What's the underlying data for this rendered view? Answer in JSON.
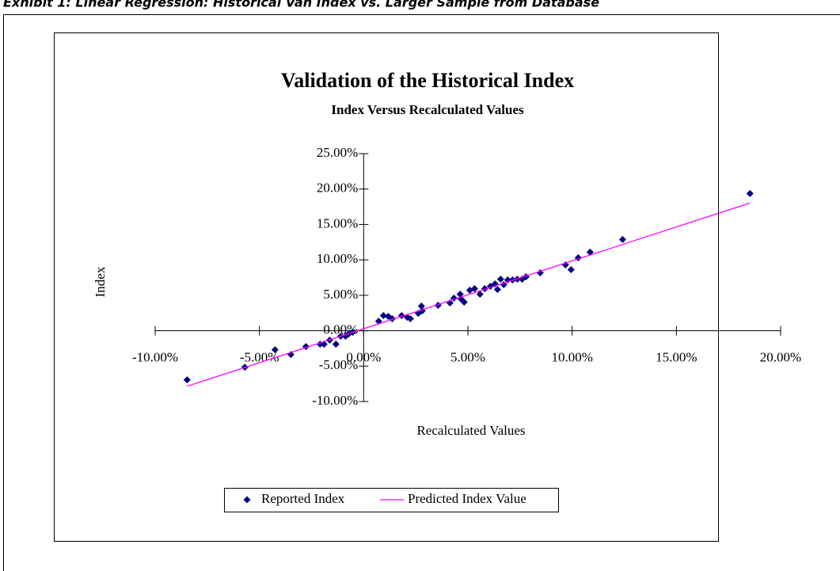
{
  "exhibit_title": "Exhibit 1: Linear Regression: Historical Van Index vs. Larger Sample from Database",
  "chart_data": {
    "type": "scatter",
    "title": "Validation of the Historical Index",
    "subtitle": "Index Versus Recalculated Values",
    "x_label": "Recalculated Values",
    "y_label": "Index",
    "xlim": [
      -10,
      20
    ],
    "xticks": [
      {
        "value": -10,
        "label": "-10.00%"
      },
      {
        "value": -5,
        "label": "-5.00%"
      },
      {
        "value": 0,
        "label": "0.00%"
      },
      {
        "value": 5,
        "label": "5.00%"
      },
      {
        "value": 10,
        "label": "10.00%"
      },
      {
        "value": 15,
        "label": "15.00%"
      },
      {
        "value": 20,
        "label": "20.00%"
      }
    ],
    "ylim": [
      -10,
      25
    ],
    "yticks": [
      {
        "value": -10,
        "label": "-10.00%"
      },
      {
        "value": -5,
        "label": "-5.00%"
      },
      {
        "value": 0,
        "label": "0.00%"
      },
      {
        "value": 5,
        "label": "5.00%"
      },
      {
        "value": 10,
        "label": "10.00%"
      },
      {
        "value": 15,
        "label": "15.00%"
      },
      {
        "value": 20,
        "label": "20.00%"
      },
      {
        "value": 25,
        "label": "25.00%"
      }
    ],
    "series": [
      {
        "name": "Reported Index",
        "color": "#000080",
        "kind": "points",
        "x": [
          -8.47,
          -5.7,
          -4.25,
          -3.49,
          -2.77,
          -2.09,
          -1.9,
          -1.63,
          -1.33,
          -1.1,
          -0.87,
          -0.72,
          -0.53,
          0.72,
          0.95,
          1.18,
          1.37,
          1.82,
          2.09,
          2.24,
          2.62,
          2.77,
          2.81,
          3.57,
          4.14,
          4.33,
          4.63,
          4.67,
          4.82,
          5.09,
          5.32,
          5.58,
          5.81,
          6.08,
          6.3,
          6.42,
          6.57,
          6.72,
          6.91,
          7.14,
          7.37,
          7.6,
          7.79,
          8.47,
          9.68,
          9.95,
          10.29,
          10.86,
          12.42,
          18.53
        ],
        "values": [
          -6.94,
          -5.15,
          -2.69,
          -3.36,
          -2.24,
          -1.9,
          -1.9,
          -1.34,
          -1.9,
          -0.78,
          -0.78,
          -0.45,
          -0.22,
          1.34,
          2.13,
          2.02,
          1.68,
          2.13,
          1.9,
          1.68,
          2.46,
          3.47,
          2.8,
          3.58,
          3.92,
          4.59,
          5.15,
          4.48,
          4.03,
          5.71,
          5.94,
          5.15,
          5.94,
          6.27,
          6.61,
          5.82,
          7.28,
          6.5,
          7.17,
          7.17,
          7.28,
          7.28,
          7.61,
          8.17,
          9.29,
          8.62,
          10.3,
          11.09,
          12.88,
          19.37
        ]
      },
      {
        "name": "Predicted Index Value",
        "color": "#ff00ff",
        "kind": "line",
        "x": [
          -8.47,
          18.53
        ],
        "values": [
          -7.84,
          18.03
        ]
      }
    ]
  }
}
